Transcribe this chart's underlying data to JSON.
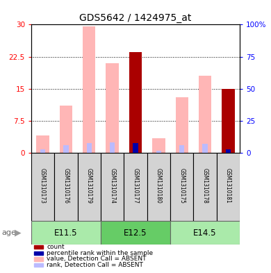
{
  "title": "GDS5642 / 1424975_at",
  "samples": [
    "GSM1310173",
    "GSM1310176",
    "GSM1310179",
    "GSM1310174",
    "GSM1310177",
    "GSM1310180",
    "GSM1310175",
    "GSM1310178",
    "GSM1310181"
  ],
  "age_groups": [
    {
      "label": "E11.5",
      "indices": [
        0,
        1,
        2
      ]
    },
    {
      "label": "E12.5",
      "indices": [
        3,
        4,
        5
      ]
    },
    {
      "label": "E14.5",
      "indices": [
        6,
        7,
        8
      ]
    }
  ],
  "pink_value": [
    4.0,
    11.0,
    29.5,
    21.0,
    0.0,
    3.5,
    13.0,
    18.0,
    3.0
  ],
  "lightblue_rank": [
    2.5,
    6.0,
    7.5,
    8.0,
    0.0,
    1.5,
    6.0,
    7.0,
    0.0
  ],
  "darkred_count": [
    0.0,
    0.0,
    0.0,
    0.0,
    23.5,
    0.0,
    0.0,
    0.0,
    15.0
  ],
  "darkblue_pct": [
    0.0,
    0.0,
    0.0,
    0.0,
    7.5,
    0.0,
    0.0,
    0.0,
    3.0
  ],
  "ylim_left": [
    0,
    30
  ],
  "ylim_right": [
    0,
    100
  ],
  "yticks_left": [
    0,
    7.5,
    15,
    22.5,
    30
  ],
  "yticks_right": [
    0,
    25,
    50,
    75,
    100
  ],
  "ytick_labels_left": [
    "0",
    "7.5",
    "15",
    "22.5",
    "30"
  ],
  "ytick_labels_right": [
    "0",
    "25",
    "50",
    "75",
    "100%"
  ],
  "color_pink": "#FFB6B6",
  "color_lightblue": "#BBBBFF",
  "color_darkred": "#AA0000",
  "color_darkblue": "#0000AA",
  "age_label": "age",
  "legend_items": [
    {
      "color": "#AA0000",
      "label": "count"
    },
    {
      "color": "#0000AA",
      "label": "percentile rank within the sample"
    },
    {
      "color": "#FFB6B6",
      "label": "value, Detection Call = ABSENT"
    },
    {
      "color": "#BBBBFF",
      "label": "rank, Detection Call = ABSENT"
    }
  ],
  "age_group_colors": [
    "#AAEAAA",
    "#66CC66",
    "#AAEAAA"
  ],
  "sample_box_color": "#D3D3D3",
  "figsize": [
    3.9,
    3.93
  ],
  "dpi": 100
}
